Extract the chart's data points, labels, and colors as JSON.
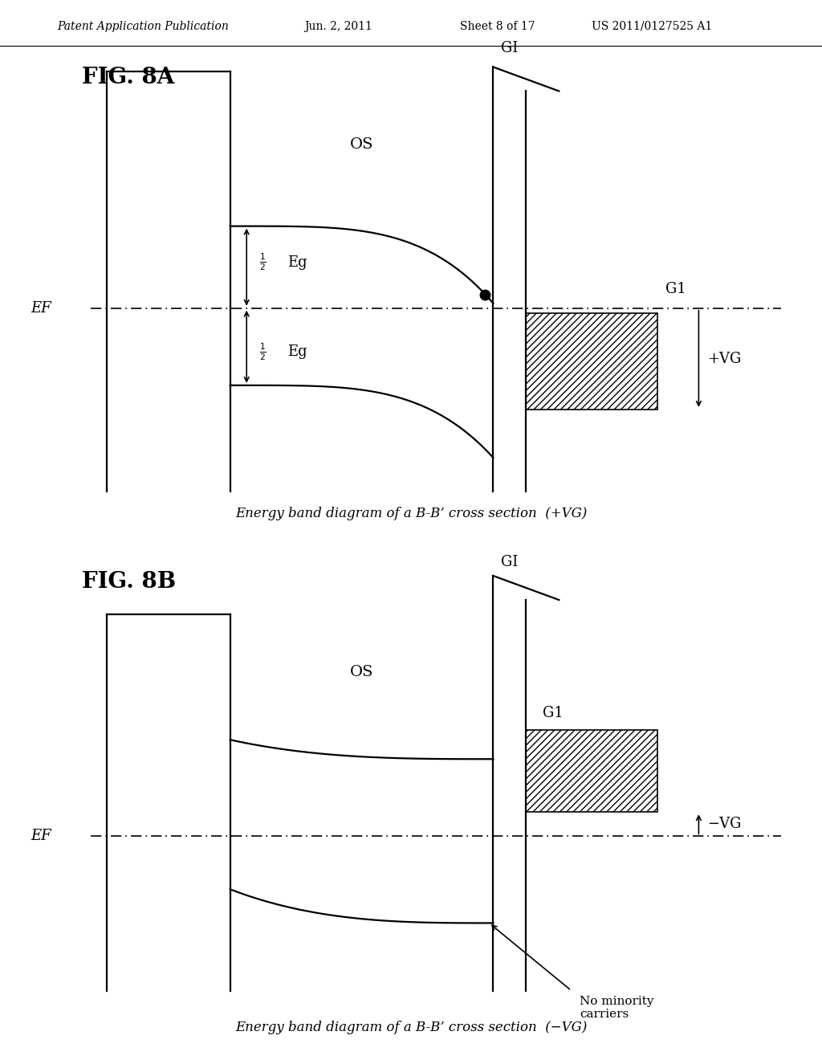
{
  "bg_color": "#ffffff",
  "header_text": "Patent Application Publication",
  "header_date": "Jun. 2, 2011",
  "header_sheet": "Sheet 8 of 17",
  "header_patent": "US 2011/0127525 A1",
  "fig8a_label": "FIG. 8A",
  "fig8b_label": "FIG. 8B",
  "caption_8a": "Energy band diagram of a B-B’ cross section  (+VG)",
  "caption_8b": "Energy band diagram of a B-B’ cross section  (−VG)",
  "label_OS": "OS",
  "label_GI": "GI",
  "label_G1": "G1",
  "label_EF": "EF",
  "label_VG_pos": "+VG",
  "label_VG_neg": "−VG",
  "label_no_minority": "No minority\ncarriers",
  "line_color": "#000000",
  "lw": 1.6,
  "font_size_header": 10,
  "font_size_fig": 20,
  "font_size_label": 13,
  "font_size_caption": 12
}
